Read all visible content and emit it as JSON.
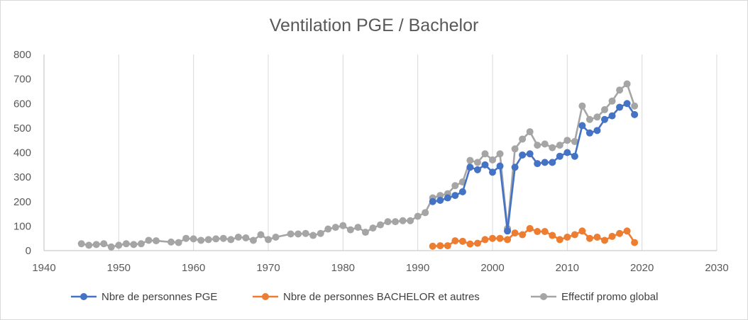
{
  "chart_data": {
    "type": "scatter",
    "title": "Ventilation PGE / Bachelor",
    "xlabel": "",
    "ylabel": "",
    "xlim": [
      1940,
      2030
    ],
    "ylim": [
      0,
      800
    ],
    "xticks": [
      1940,
      1950,
      1960,
      1970,
      1980,
      1990,
      2000,
      2010,
      2020,
      2030
    ],
    "yticks": [
      0,
      100,
      200,
      300,
      400,
      500,
      600,
      700,
      800
    ],
    "grid": "vertical",
    "legend_position": "bottom",
    "series": [
      {
        "name": "Nbre de personnes PGE",
        "color": "#4472c4",
        "x": [
          1992,
          1993,
          1994,
          1995,
          1996,
          1997,
          1998,
          1999,
          2000,
          2001,
          2002,
          2003,
          2004,
          2005,
          2006,
          2007,
          2008,
          2009,
          2010,
          2011,
          2012,
          2013,
          2014,
          2015,
          2016,
          2017,
          2018,
          2019
        ],
        "y": [
          200,
          205,
          215,
          225,
          240,
          340,
          330,
          350,
          320,
          345,
          80,
          340,
          390,
          395,
          355,
          360,
          360,
          385,
          400,
          385,
          510,
          480,
          490,
          535,
          550,
          585,
          600,
          555
        ]
      },
      {
        "name": "Nbre de personnes BACHELOR et autres",
        "color": "#ed7d31",
        "x": [
          1992,
          1993,
          1994,
          1995,
          1996,
          1997,
          1998,
          1999,
          2000,
          2001,
          2002,
          2003,
          2004,
          2005,
          2006,
          2007,
          2008,
          2009,
          2010,
          2011,
          2012,
          2013,
          2014,
          2015,
          2016,
          2017,
          2018,
          2019
        ],
        "y": [
          18,
          20,
          20,
          40,
          38,
          27,
          30,
          45,
          50,
          50,
          45,
          72,
          65,
          90,
          78,
          78,
          62,
          45,
          55,
          65,
          80,
          50,
          55,
          42,
          58,
          70,
          80,
          33
        ]
      },
      {
        "name": "Effectif promo global",
        "color": "#a5a5a5",
        "x": [
          1945,
          1946,
          1947,
          1948,
          1949,
          1950,
          1951,
          1952,
          1953,
          1954,
          1955,
          1957,
          1958,
          1959,
          1960,
          1961,
          1962,
          1963,
          1964,
          1965,
          1966,
          1967,
          1968,
          1969,
          1970,
          1971,
          1973,
          1974,
          1975,
          1976,
          1977,
          1978,
          1979,
          1980,
          1981,
          1982,
          1983,
          1984,
          1985,
          1986,
          1987,
          1988,
          1989,
          1990,
          1991,
          1992,
          1993,
          1994,
          1995,
          1996,
          1997,
          1998,
          1999,
          2000,
          2001,
          2002,
          2003,
          2004,
          2005,
          2006,
          2007,
          2008,
          2009,
          2010,
          2011,
          2012,
          2013,
          2014,
          2015,
          2016,
          2017,
          2018,
          2019
        ],
        "y": [
          28,
          22,
          25,
          28,
          15,
          22,
          28,
          25,
          28,
          42,
          40,
          35,
          33,
          50,
          48,
          42,
          45,
          48,
          50,
          45,
          55,
          52,
          42,
          65,
          45,
          55,
          68,
          68,
          70,
          62,
          70,
          88,
          95,
          102,
          85,
          95,
          75,
          92,
          105,
          118,
          118,
          122,
          122,
          140,
          155,
          215,
          225,
          232,
          265,
          280,
          368,
          360,
          395,
          370,
          395,
          90,
          415,
          455,
          485,
          430,
          435,
          420,
          430,
          450,
          445,
          590,
          535,
          545,
          575,
          610,
          655,
          680,
          590
        ]
      }
    ]
  }
}
